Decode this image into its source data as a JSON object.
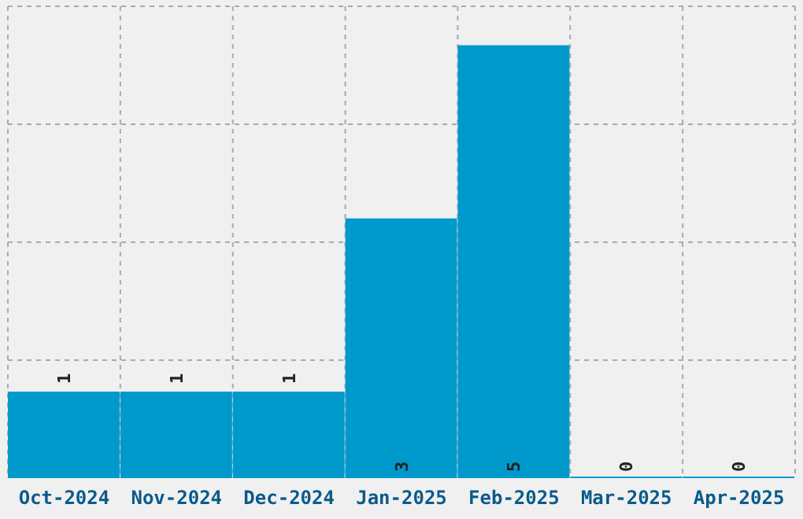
{
  "chart_data": {
    "type": "bar",
    "categories": [
      "Oct-2024",
      "Nov-2024",
      "Dec-2024",
      "Jan-2025",
      "Feb-2025",
      "Mar-2025",
      "Apr-2025"
    ],
    "values": [
      1,
      1,
      1,
      3,
      5,
      0,
      0
    ],
    "color": "#0099cc",
    "ylim": [
      0,
      5.45
    ],
    "yticks": [
      {
        "value": 1.3625,
        "label": null
      },
      {
        "value": 2.725,
        "label": null
      },
      {
        "value": 4.0875,
        "label": null
      },
      {
        "value": 5.45,
        "label": null
      }
    ],
    "grid": true,
    "data_labels": true,
    "tick_labels": "x"
  }
}
